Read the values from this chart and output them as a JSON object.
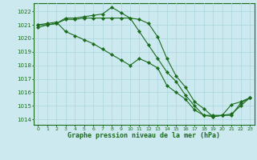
{
  "title": "Graphe pression niveau de la mer (hPa)",
  "background_color": "#cce9f0",
  "grid_color": "#b0d8e0",
  "line_color": "#1a6b1a",
  "x_ticks": [
    0,
    1,
    2,
    3,
    4,
    5,
    6,
    7,
    8,
    9,
    10,
    11,
    12,
    13,
    14,
    15,
    16,
    17,
    18,
    19,
    20,
    21,
    22,
    23
  ],
  "ylim": [
    1013.6,
    1022.6
  ],
  "y_ticks": [
    1014,
    1015,
    1016,
    1017,
    1018,
    1019,
    1020,
    1021,
    1022
  ],
  "series1": [
    1020.8,
    1021.0,
    1021.1,
    1021.5,
    1021.5,
    1021.6,
    1021.7,
    1021.8,
    1022.3,
    1021.9,
    1021.5,
    1021.4,
    1021.1,
    1020.1,
    1018.5,
    1017.2,
    1016.4,
    1015.3,
    1014.8,
    1014.2,
    1014.3,
    1015.1,
    1015.3,
    1015.6
  ],
  "series2": [
    1021.0,
    1021.0,
    1021.1,
    1021.4,
    1021.4,
    1021.5,
    1021.5,
    1021.5,
    1021.5,
    1021.5,
    1021.5,
    1020.5,
    1019.5,
    1018.5,
    1017.5,
    1016.8,
    1015.8,
    1015.0,
    1014.3,
    1014.2,
    1014.3,
    1014.4,
    1015.0,
    1015.6
  ],
  "series3": [
    1021.0,
    1021.1,
    1021.2,
    1020.5,
    1020.2,
    1019.9,
    1019.6,
    1019.2,
    1018.8,
    1018.4,
    1018.0,
    1018.5,
    1018.2,
    1017.8,
    1016.5,
    1016.0,
    1015.5,
    1014.7,
    1014.3,
    1014.3,
    1014.3,
    1014.3,
    1015.2,
    1015.6
  ],
  "xlim": [
    -0.5,
    23.5
  ]
}
